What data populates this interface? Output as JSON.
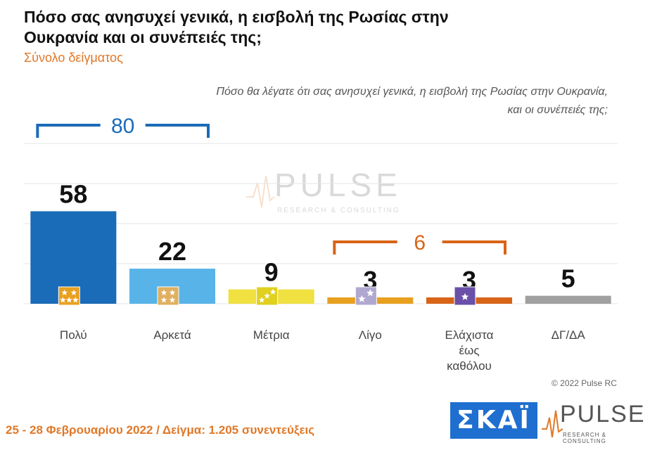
{
  "header": {
    "title": "Πόσο σας ανησυχεί γενικά, η εισβολή της Ρωσίας στην Ουκρανία και οι συνέπειές της;",
    "subtitle": "Σύνολο δείγματος",
    "question_line1": "Πόσο θα λέγατε ότι σας ανησυχεί γενικά, η εισβολή της Ρωσίας στην Ουκρανία,",
    "question_line2": "και οι συνέπειές της;"
  },
  "chart_data": {
    "type": "bar",
    "categories": [
      "Πολύ",
      "Αρκετά",
      "Μέτρια",
      "Λίγο",
      "Ελάχιστα έως καθόλου",
      "ΔΓ/ΔΑ"
    ],
    "category_lines": [
      [
        "Πολύ"
      ],
      [
        "Αρκετά"
      ],
      [
        "Μέτρια"
      ],
      [
        "Λίγο"
      ],
      [
        "Ελάχιστα",
        "έως",
        "καθόλου"
      ],
      [
        "ΔΓ/ΔΑ"
      ]
    ],
    "values": [
      58,
      22,
      9,
      3,
      3,
      5
    ],
    "colors": [
      "#1a6bb8",
      "#58b4e8",
      "#f0e040",
      "#e8a020",
      "#d86418",
      "#a0a0a0"
    ],
    "icon_colors": [
      "#e8a020",
      "#e0b060",
      "#e0d020",
      "#b0a8d0",
      "#6a50a8",
      ""
    ],
    "icon_stars": [
      5,
      4,
      3,
      2,
      1,
      0
    ],
    "groups": [
      {
        "label": "80",
        "from": 0,
        "to": 1,
        "color": "#1a6bb8"
      },
      {
        "label": "6",
        "from": 3,
        "to": 4,
        "color": "#d86418"
      }
    ],
    "ylim": [
      0,
      60
    ],
    "grid": true
  },
  "watermark": {
    "name": "PULSE",
    "tagline": "RESEARCH & CONSULTING"
  },
  "footer": {
    "copyright": "© 2022 Pulse RC",
    "fieldwork": "25 - 28  Φεβρουαρίου  2022  /  Δείγμα:  1.205 συνεντεύξεις"
  },
  "logos": {
    "skai": "ΣΚΑΪ",
    "pulse": "PULSE",
    "pulse_tagline": "RESEARCH & CONSULTING"
  }
}
